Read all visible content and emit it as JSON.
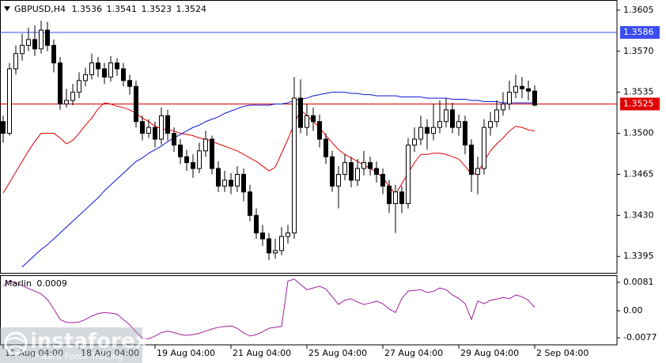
{
  "chart_data": [
    {
      "type": "candlestick",
      "symbol": "GBPUSD,H4",
      "categories": [
        "15 Aug 04:00",
        null,
        null,
        null,
        null,
        null,
        null,
        null,
        null,
        null,
        null,
        null,
        "18 Aug 04:00",
        null,
        null,
        null,
        null,
        null,
        null,
        null,
        null,
        null,
        null,
        null,
        "19 Aug 04:00",
        null,
        null,
        null,
        null,
        null,
        null,
        null,
        null,
        null,
        null,
        null,
        "21 Aug 04:00",
        null,
        null,
        null,
        null,
        null,
        null,
        null,
        null,
        null,
        null,
        null,
        "25 Aug 04:00",
        null,
        null,
        null,
        null,
        null,
        null,
        null,
        null,
        null,
        null,
        null,
        "27 Aug 04:00",
        null,
        null,
        null,
        null,
        null,
        null,
        null,
        null,
        null,
        null,
        null,
        "29 Aug 04:00",
        null,
        null,
        null,
        null,
        null,
        null,
        null,
        null,
        null,
        null,
        null,
        "2 Sep 04:00"
      ],
      "open": [
        1.351,
        1.35,
        1.3555,
        1.3568,
        1.3575,
        1.358,
        1.3572,
        1.3588,
        1.3575,
        1.356,
        1.3525,
        1.3528,
        1.3535,
        1.3545,
        1.355,
        1.356,
        1.3555,
        1.3548,
        1.356,
        1.3555,
        1.3545,
        1.354,
        1.351,
        1.35,
        1.3505,
        1.3495,
        1.3515,
        1.35,
        1.349,
        1.348,
        1.3475,
        1.347,
        1.3485,
        1.3495,
        1.347,
        1.3455,
        1.346,
        1.3455,
        1.3465,
        1.345,
        1.343,
        1.3415,
        1.341,
        1.3398,
        1.34,
        1.3412,
        1.3415,
        1.353,
        1.3505,
        1.3515,
        1.351,
        1.3495,
        1.348,
        1.3455,
        1.3465,
        1.3475,
        1.346,
        1.347,
        1.3475,
        1.347,
        1.3465,
        1.3455,
        1.344,
        1.345,
        1.344,
        1.349,
        1.3495,
        1.3505,
        1.35,
        1.3505,
        1.351,
        1.352,
        1.3505,
        1.351,
        1.349,
        1.3465,
        1.347,
        1.3505,
        1.351,
        1.352,
        1.3525,
        1.3535,
        1.354,
        1.3538,
        1.3536
      ],
      "high": [
        1.3515,
        1.356,
        1.3575,
        1.3585,
        1.359,
        1.3592,
        1.3596,
        1.3595,
        1.358,
        1.3565,
        1.3538,
        1.3542,
        1.3552,
        1.3556,
        1.3568,
        1.3565,
        1.356,
        1.3566,
        1.3564,
        1.356,
        1.355,
        1.3545,
        1.3515,
        1.3512,
        1.351,
        1.3522,
        1.352,
        1.3505,
        1.3495,
        1.3486,
        1.3482,
        1.3492,
        1.3502,
        1.3498,
        1.3476,
        1.3468,
        1.3466,
        1.3472,
        1.347,
        1.3456,
        1.3436,
        1.3422,
        1.3415,
        1.341,
        1.342,
        1.3422,
        1.3548,
        1.3546,
        1.3525,
        1.3522,
        1.3516,
        1.35,
        1.3485,
        1.3472,
        1.3482,
        1.348,
        1.3478,
        1.3485,
        1.348,
        1.3476,
        1.347,
        1.346,
        1.3456,
        1.3455,
        1.3496,
        1.3505,
        1.3515,
        1.3512,
        1.3525,
        1.3528,
        1.353,
        1.3526,
        1.3516,
        1.3515,
        1.3495,
        1.348,
        1.3512,
        1.3518,
        1.3528,
        1.3535,
        1.3545,
        1.355,
        1.3548,
        1.3545,
        1.3541
      ],
      "low": [
        1.3492,
        1.3498,
        1.355,
        1.3562,
        1.357,
        1.3566,
        1.3568,
        1.357,
        1.3552,
        1.352,
        1.3522,
        1.3524,
        1.353,
        1.354,
        1.3546,
        1.3548,
        1.3542,
        1.3544,
        1.3549,
        1.354,
        1.3533,
        1.3505,
        1.3494,
        1.3496,
        1.3488,
        1.349,
        1.3494,
        1.3484,
        1.3474,
        1.3468,
        1.3462,
        1.3466,
        1.348,
        1.3465,
        1.345,
        1.345,
        1.3448,
        1.345,
        1.3442,
        1.3425,
        1.341,
        1.3404,
        1.3392,
        1.3393,
        1.3396,
        1.3406,
        1.341,
        1.35,
        1.3498,
        1.3502,
        1.3488,
        1.3474,
        1.345,
        1.3436,
        1.346,
        1.3454,
        1.3455,
        1.3464,
        1.3464,
        1.3458,
        1.3448,
        1.3432,
        1.3415,
        1.3432,
        1.3436,
        1.3484,
        1.349,
        1.3486,
        1.3494,
        1.35,
        1.3505,
        1.35,
        1.3498,
        1.3482,
        1.345,
        1.3448,
        1.3465,
        1.3498,
        1.3505,
        1.3515,
        1.352,
        1.353,
        1.353,
        1.3528,
        1.3523
      ],
      "close": [
        1.35,
        1.3555,
        1.3568,
        1.3575,
        1.358,
        1.3572,
        1.3588,
        1.3575,
        1.356,
        1.3525,
        1.3528,
        1.3535,
        1.3545,
        1.355,
        1.356,
        1.3555,
        1.3548,
        1.356,
        1.3555,
        1.3545,
        1.354,
        1.351,
        1.35,
        1.3505,
        1.3495,
        1.3515,
        1.35,
        1.349,
        1.348,
        1.3475,
        1.347,
        1.3485,
        1.3495,
        1.347,
        1.3455,
        1.346,
        1.3455,
        1.3465,
        1.345,
        1.343,
        1.3415,
        1.341,
        1.3398,
        1.34,
        1.3412,
        1.3415,
        1.353,
        1.3505,
        1.3515,
        1.351,
        1.3495,
        1.348,
        1.3455,
        1.3465,
        1.3475,
        1.346,
        1.347,
        1.3475,
        1.347,
        1.3465,
        1.3455,
        1.344,
        1.345,
        1.344,
        1.349,
        1.3495,
        1.3505,
        1.35,
        1.3505,
        1.351,
        1.352,
        1.3505,
        1.351,
        1.349,
        1.3465,
        1.347,
        1.3505,
        1.351,
        1.352,
        1.3525,
        1.3535,
        1.354,
        1.3538,
        1.3536,
        1.3524
      ],
      "up_color": "#ffffff",
      "down_color": "#000000",
      "series": [
        {
          "color": "#e00000",
          "values": [
            1.3449,
            1.3458,
            1.3467,
            1.3476,
            1.3485,
            1.3493,
            1.35,
            1.35,
            1.35,
            1.3496,
            1.3491,
            1.3494,
            1.35,
            1.3507,
            1.3513,
            1.3521,
            1.3526,
            1.3525,
            1.3523,
            1.3522,
            1.352,
            1.3517,
            1.3513,
            1.351,
            1.3506,
            1.3504,
            1.3503,
            1.3502,
            1.35,
            1.3499,
            1.3498,
            1.3496,
            1.3495,
            1.3493,
            1.3491,
            1.3489,
            1.3487,
            1.3485,
            1.3482,
            1.3479,
            1.3476,
            1.3472,
            1.3468,
            1.3471,
            1.3483,
            1.3495,
            1.3508,
            1.352,
            1.3515,
            1.351,
            1.3505,
            1.3498,
            1.3492,
            1.3486,
            1.3482,
            1.3479,
            1.3476,
            1.3473,
            1.347,
            1.3467,
            1.3462,
            1.3455,
            1.3448,
            1.3457,
            1.3466,
            1.3475,
            1.3482,
            1.3482,
            1.3483,
            1.3483,
            1.3482,
            1.348,
            1.3478,
            1.3472,
            1.3465,
            1.3466,
            1.3476,
            1.3485,
            1.3491,
            1.3496,
            1.3502,
            1.3506,
            1.3505,
            1.3503,
            1.3502
          ]
        },
        {
          "color": "#0b16d6",
          "values": [
            null,
            null,
            null,
            1.3386,
            1.3391,
            1.3396,
            1.3401,
            1.3405,
            1.341,
            1.3415,
            1.342,
            1.3425,
            1.343,
            1.3435,
            1.344,
            1.3445,
            1.3451,
            1.3456,
            1.3461,
            1.3466,
            1.3471,
            1.3476,
            1.3479,
            1.3483,
            1.3486,
            1.3489,
            1.3493,
            1.3496,
            1.3499,
            1.3502,
            1.3505,
            1.3507,
            1.351,
            1.3512,
            1.3514,
            1.3517,
            1.3519,
            1.3521,
            1.3523,
            1.3524,
            1.3524,
            1.3524,
            1.3524,
            1.3525,
            1.3525,
            1.3526,
            1.3528,
            1.3529,
            1.353,
            1.3532,
            1.3533,
            1.3534,
            1.3535,
            1.3535,
            1.3535,
            1.3534,
            1.3534,
            1.3533,
            1.3533,
            1.3532,
            1.3532,
            1.3532,
            1.3532,
            1.3531,
            1.3531,
            1.3531,
            1.3531,
            1.353,
            1.353,
            1.353,
            1.353,
            1.3529,
            1.3529,
            1.3529,
            1.3528,
            1.3528,
            1.3527,
            1.3527,
            1.3527,
            1.3526,
            1.3526,
            1.3526,
            1.3526,
            1.3526,
            1.3526
          ]
        }
      ],
      "levels": [
        {
          "value": 1.3586,
          "color": "#3b4cf0"
        },
        {
          "value": 1.3525,
          "color": "#e00000"
        }
      ],
      "ylim": [
        1.3381,
        1.3613
      ],
      "yticks": [
        1.3605,
        {
          "value": 1.357,
          "label": "1.3570"
        },
        1.3535,
        {
          "value": 1.35,
          "label": "1.3500"
        },
        1.3465,
        {
          "value": 1.343,
          "label": "1.3430"
        },
        1.3395
      ]
    },
    {
      "type": "line",
      "title": "Marlin",
      "color": "#a020a0",
      "values": [
        0.007,
        0.0085,
        0.0078,
        0.0072,
        0.0063,
        0.0056,
        0.0048,
        0.0032,
        0.0005,
        -0.0025,
        -0.0033,
        -0.0034,
        -0.0032,
        -0.0025,
        -0.0015,
        -0.0008,
        -0.0005,
        -0.0007,
        -0.001,
        -0.0025,
        -0.004,
        -0.006,
        -0.0078,
        -0.008,
        -0.0072,
        -0.0062,
        -0.0058,
        -0.0062,
        -0.0068,
        -0.007,
        -0.0068,
        -0.0064,
        -0.0058,
        -0.0052,
        -0.0047,
        -0.0045,
        -0.0043,
        -0.005,
        -0.0063,
        -0.0072,
        -0.0068,
        -0.006,
        -0.005,
        -0.0047,
        -0.0045,
        0.0085,
        0.009,
        0.0075,
        0.006,
        0.0065,
        0.007,
        0.0062,
        0.004,
        0.0018,
        0.003,
        0.0034,
        0.0025,
        0.0018,
        0.0022,
        0.0027,
        0.002,
        0.0005,
        -0.0005,
        0.0035,
        0.0056,
        0.0058,
        0.006,
        0.0052,
        0.0055,
        0.0065,
        0.006,
        0.0045,
        0.0035,
        0.002,
        -0.0025,
        0.0028,
        0.002,
        0.003,
        0.0033,
        0.0038,
        0.0034,
        0.0045,
        0.004,
        0.003,
        0.0009
      ],
      "ylim": [
        -0.0097,
        0.0099
      ],
      "yticks": [
        0.0081,
        {
          "value": 0,
          "label": "0.00"
        },
        -0.0077
      ]
    }
  ],
  "watermark": {
    "brand": "instaforex",
    "tagline": "Instant Forex Trading"
  }
}
